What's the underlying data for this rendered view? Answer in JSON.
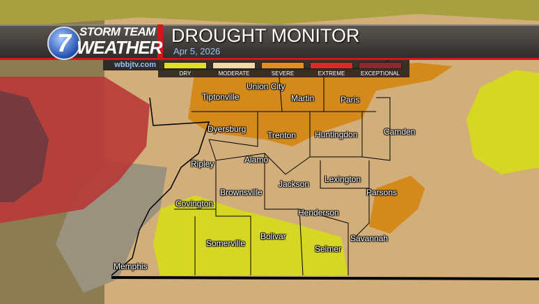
{
  "brand": {
    "logo_number": "7",
    "line1": "STORM TEAM",
    "line2": "WEATHER",
    "website": "wbbjtv.com"
  },
  "header": {
    "title": "DROUGHT MONITOR",
    "date": "Apr 5, 2026"
  },
  "legend": [
    {
      "label": "DRY",
      "color": "#e0e020"
    },
    {
      "label": "MODERATE",
      "color": "#f0d8a8"
    },
    {
      "label": "SEVERE",
      "color": "#e09020"
    },
    {
      "label": "EXTREME",
      "color": "#e02828"
    },
    {
      "label": "EXCEPTIONAL",
      "color": "#8a2a30"
    }
  ],
  "map_colors": {
    "moderate": "#d8b47e",
    "severe": "#d48a1a",
    "dry": "#d6d624",
    "extreme": "#b83838",
    "exceptional": "#6e3a3e",
    "outside": "#8c7c52"
  },
  "counties": [
    "Tiptonville",
    "Union City",
    "Martin",
    "Paris",
    "Dyersburg",
    "Trenton",
    "Huntingdon",
    "Camden",
    "Ripley",
    "Alamo",
    "Jackson",
    "Lexington",
    "Brownsville",
    "Parsons",
    "Covington",
    "Henderson",
    "Somerville",
    "Bolivar",
    "Selmer",
    "Savannah",
    "Memphis"
  ]
}
